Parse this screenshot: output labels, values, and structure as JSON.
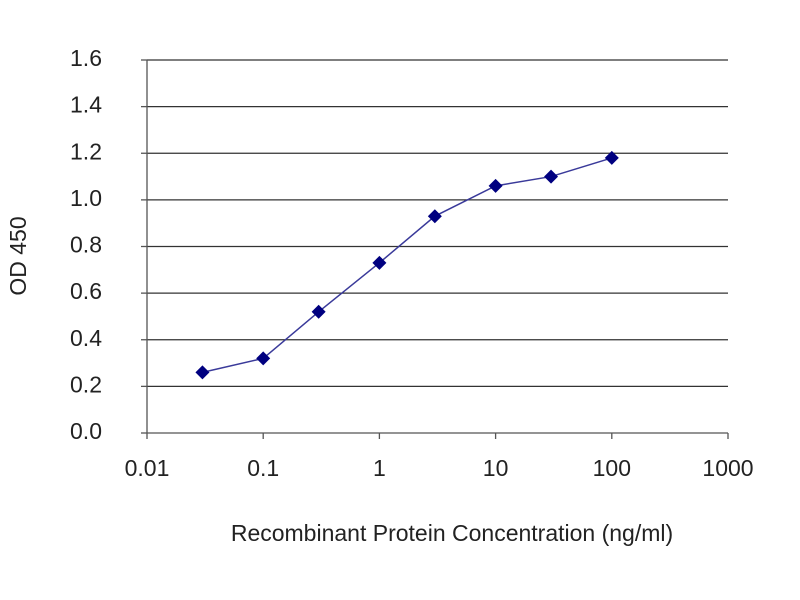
{
  "chart_data": {
    "type": "line",
    "x_label": "Recombinant Protein Concentration (ng/ml)",
    "y_label": "OD 450",
    "x": [
      0.03,
      0.1,
      0.3,
      1,
      3,
      10,
      30,
      100
    ],
    "values": [
      0.26,
      0.32,
      0.52,
      0.73,
      0.93,
      1.06,
      1.1,
      1.18
    ],
    "color": "#000080",
    "xlim": [
      0.01,
      1000
    ],
    "xticks": [
      0.01,
      0.1,
      1,
      10,
      100,
      1000
    ],
    "x_log": true,
    "ylim": [
      0,
      1.6
    ],
    "yticks": [
      {
        "value": 0,
        "label": "0.0"
      },
      0.2,
      0.4,
      0.6,
      0.8,
      {
        "value": 1,
        "label": "1.0"
      },
      1.2,
      1.4,
      1.6
    ],
    "grid": true
  }
}
